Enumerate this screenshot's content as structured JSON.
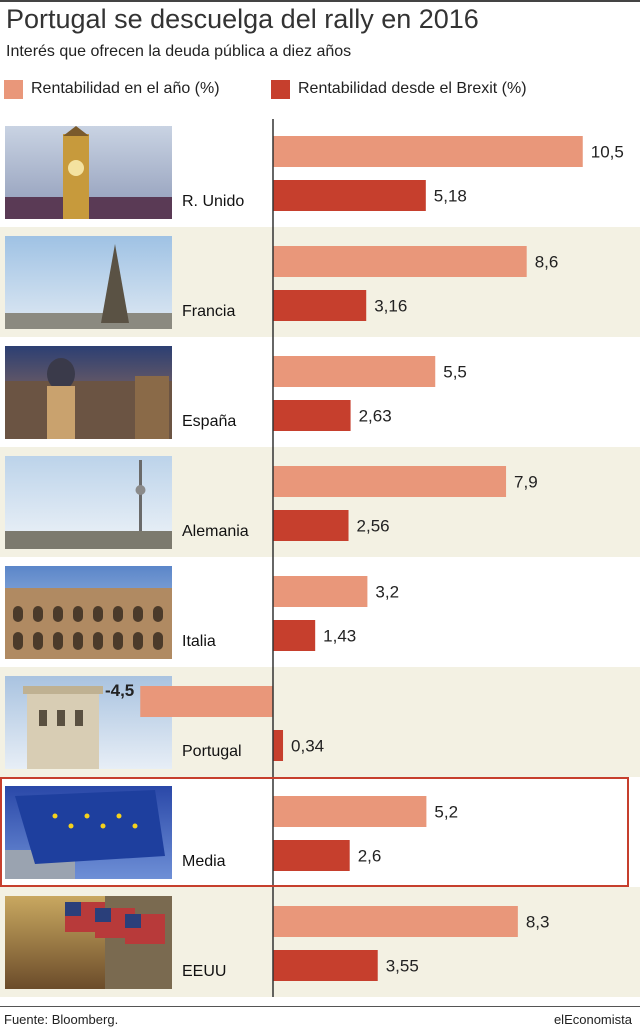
{
  "header": {
    "title": "Portugal se descuelga del rally en 2016",
    "subtitle": "Interés que ofrecen la deuda pública a diez años"
  },
  "legend": [
    {
      "label": "Rentabilidad en el año (%)",
      "color": "#e9977a"
    },
    {
      "label": "Rentabilidad desde el Brexit (%)",
      "color": "#c63f2d"
    }
  ],
  "colors": {
    "band": "#f3f1e3",
    "highlight_border": "#c63f2d",
    "axis": "#333333"
  },
  "chart_data": {
    "type": "bar",
    "orientation": "horizontal",
    "categories": [
      "R. Unido",
      "Francia",
      "España",
      "Alemania",
      "Italia",
      "Portugal",
      "Media",
      "EEUU"
    ],
    "series": [
      {
        "name": "Rentabilidad en el año (%)",
        "values": [
          10.5,
          8.6,
          5.5,
          7.9,
          3.2,
          -4.5,
          5.2,
          8.3
        ],
        "labels": [
          "10,5",
          "8,6",
          "5,5",
          "7,9",
          "3,2",
          "-4,5",
          "5,2",
          "8,3"
        ]
      },
      {
        "name": "Rentabilidad desde el Brexit (%)",
        "values": [
          5.18,
          3.16,
          2.63,
          2.56,
          1.43,
          0.34,
          2.6,
          3.55
        ],
        "labels": [
          "5,18",
          "3,16",
          "2,63",
          "2,56",
          "1,43",
          "0,34",
          "2,6",
          "3,55"
        ]
      }
    ],
    "highlighted_category": "Media",
    "photo_icons": [
      "big-ben-photo",
      "eiffel-tower-photo",
      "madrid-metropolis-photo",
      "berlin-tv-tower-photo",
      "colosseum-photo",
      "lisbon-tower-photo",
      "eu-flags-photo",
      "wall-street-flags-photo"
    ]
  },
  "footer": {
    "source": "Fuente: Bloomberg.",
    "brand": "elEconomista"
  }
}
